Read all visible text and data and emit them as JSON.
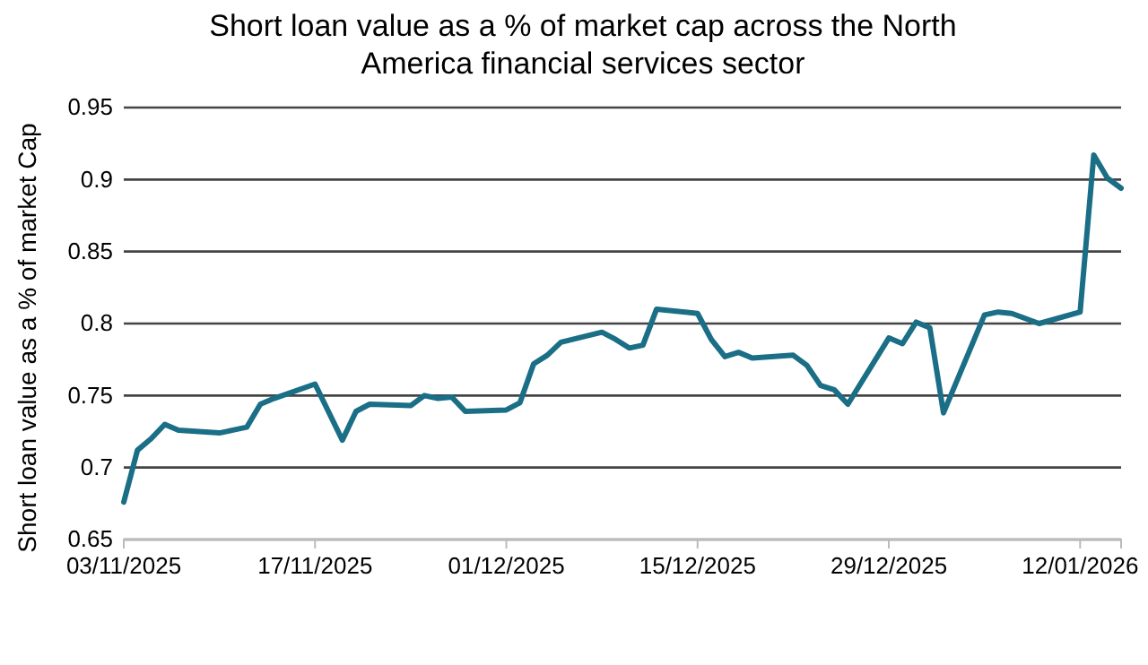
{
  "chart_data": {
    "type": "line",
    "title": "Short loan value as a % of market cap across the North America financial services sector",
    "ylabel": "Short loan value as a % of market Cap",
    "x": [
      "2025-11-03",
      "2025-11-04",
      "2025-11-05",
      "2025-11-06",
      "2025-11-07",
      "2025-11-10",
      "2025-11-11",
      "2025-11-12",
      "2025-11-13",
      "2025-11-14",
      "2025-11-17",
      "2025-11-19",
      "2025-11-20",
      "2025-11-21",
      "2025-11-24",
      "2025-11-25",
      "2025-11-26",
      "2025-11-27",
      "2025-11-28",
      "2025-12-01",
      "2025-12-02",
      "2025-12-03",
      "2025-12-04",
      "2025-12-05",
      "2025-12-08",
      "2025-12-09",
      "2025-12-10",
      "2025-12-11",
      "2025-12-12",
      "2025-12-15",
      "2025-12-16",
      "2025-12-17",
      "2025-12-18",
      "2025-12-19",
      "2025-12-22",
      "2025-12-23",
      "2025-12-24",
      "2025-12-25",
      "2025-12-26",
      "2025-12-29",
      "2025-12-30",
      "2025-12-31",
      "2026-01-01",
      "2026-01-02",
      "2026-01-05",
      "2026-01-06",
      "2026-01-07",
      "2026-01-09",
      "2026-01-12",
      "2026-01-13",
      "2026-01-14",
      "2026-01-15"
    ],
    "series": [
      {
        "color": "#1a6e85",
        "values": [
          0.676,
          0.712,
          0.72,
          0.73,
          0.726,
          0.724,
          0.726,
          0.728,
          0.744,
          0.748,
          0.758,
          0.719,
          0.739,
          0.744,
          0.743,
          0.75,
          0.748,
          0.749,
          0.739,
          0.74,
          0.745,
          0.772,
          0.778,
          0.787,
          0.794,
          0.789,
          0.783,
          0.785,
          0.81,
          0.807,
          0.789,
          0.777,
          0.78,
          0.776,
          0.778,
          0.771,
          0.757,
          0.754,
          0.744,
          0.79,
          0.786,
          0.801,
          0.797,
          0.738,
          0.806,
          0.808,
          0.807,
          0.8,
          0.808,
          0.917,
          0.901,
          0.894
        ]
      }
    ],
    "xlim": [
      "2025-11-03",
      "2026-01-15"
    ],
    "xticks": [
      {
        "value": "2025-11-03",
        "label": "03/11/2025"
      },
      {
        "value": "2025-11-17",
        "label": "17/11/2025"
      },
      {
        "value": "2025-12-01",
        "label": "01/12/2025"
      },
      {
        "value": "2025-12-15",
        "label": "15/12/2025"
      },
      {
        "value": "2025-12-29",
        "label": "29/12/2025"
      },
      {
        "value": "2026-01-12",
        "label": "12/01/2026"
      }
    ],
    "ylim": [
      0.65,
      0.95
    ],
    "yticks": [
      0.65,
      0.7,
      0.75,
      0.8,
      0.85,
      0.9,
      0.95
    ],
    "grid": "y",
    "line_style": "solid"
  }
}
